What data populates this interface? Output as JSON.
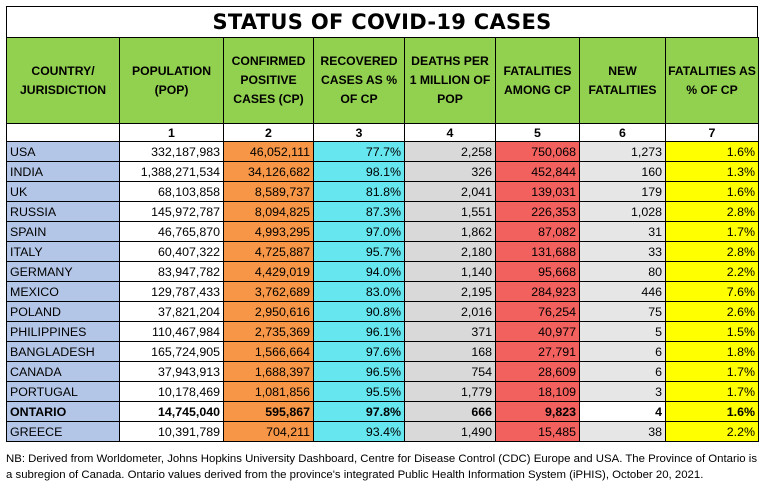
{
  "title": "STATUS OF COVID-19 CASES",
  "headers": [
    "COUNTRY/ JURISDICTION",
    "POPULATION (POP)",
    "CONFIRMED POSITIVE CASES (CP)",
    "RECOVERED CASES AS % OF CP",
    "DEATHS PER 1 MILLION OF POP",
    "FATALITIES AMONG CP",
    "NEW FATALITIES",
    "FATALITIES AS % OF CP"
  ],
  "column_numbers": [
    "",
    "1",
    "2",
    "3",
    "4",
    "5",
    "6",
    "7"
  ],
  "rows": [
    {
      "country": "USA",
      "pop": "332,187,983",
      "cp": "46,052,111",
      "rec": "77.7%",
      "dpm": "2,258",
      "fat": "750,068",
      "newf": "1,273",
      "pct": "1.6%",
      "bold": false
    },
    {
      "country": "INDIA",
      "pop": "1,388,271,534",
      "cp": "34,126,682",
      "rec": "98.1%",
      "dpm": "326",
      "fat": "452,844",
      "newf": "160",
      "pct": "1.3%",
      "bold": false
    },
    {
      "country": "UK",
      "pop": "68,103,858",
      "cp": "8,589,737",
      "rec": "81.8%",
      "dpm": "2,041",
      "fat": "139,031",
      "newf": "179",
      "pct": "1.6%",
      "bold": false
    },
    {
      "country": "RUSSIA",
      "pop": "145,972,787",
      "cp": "8,094,825",
      "rec": "87.3%",
      "dpm": "1,551",
      "fat": "226,353",
      "newf": "1,028",
      "pct": "2.8%",
      "bold": false
    },
    {
      "country": "SPAIN",
      "pop": "46,765,870",
      "cp": "4,993,295",
      "rec": "97.0%",
      "dpm": "1,862",
      "fat": "87,082",
      "newf": "31",
      "pct": "1.7%",
      "bold": false
    },
    {
      "country": "ITALY",
      "pop": "60,407,322",
      "cp": "4,725,887",
      "rec": "95.7%",
      "dpm": "2,180",
      "fat": "131,688",
      "newf": "33",
      "pct": "2.8%",
      "bold": false
    },
    {
      "country": "GERMANY",
      "pop": "83,947,782",
      "cp": "4,429,019",
      "rec": "94.0%",
      "dpm": "1,140",
      "fat": "95,668",
      "newf": "80",
      "pct": "2.2%",
      "bold": false
    },
    {
      "country": "MEXICO",
      "pop": "129,787,433",
      "cp": "3,762,689",
      "rec": "83.0%",
      "dpm": "2,195",
      "fat": "284,923",
      "newf": "446",
      "pct": "7.6%",
      "bold": false
    },
    {
      "country": "POLAND",
      "pop": "37,821,204",
      "cp": "2,950,616",
      "rec": "90.8%",
      "dpm": "2,016",
      "fat": "76,254",
      "newf": "75",
      "pct": "2.6%",
      "bold": false
    },
    {
      "country": "PHILIPPINES",
      "pop": "110,467,984",
      "cp": "2,735,369",
      "rec": "96.1%",
      "dpm": "371",
      "fat": "40,977",
      "newf": "5",
      "pct": "1.5%",
      "bold": false
    },
    {
      "country": "BANGLADESH",
      "pop": "165,724,905",
      "cp": "1,566,664",
      "rec": "97.6%",
      "dpm": "168",
      "fat": "27,791",
      "newf": "6",
      "pct": "1.8%",
      "bold": false
    },
    {
      "country": "CANADA",
      "pop": "37,943,913",
      "cp": "1,688,397",
      "rec": "96.5%",
      "dpm": "754",
      "fat": "28,609",
      "newf": "6",
      "pct": "1.7%",
      "bold": false
    },
    {
      "country": "PORTUGAL",
      "pop": "10,178,469",
      "cp": "1,081,856",
      "rec": "95.5%",
      "dpm": "1,779",
      "fat": "18,109",
      "newf": "3",
      "pct": "1.7%",
      "bold": false
    },
    {
      "country": "ONTARIO",
      "pop": "14,745,040",
      "cp": "595,867",
      "rec": "97.8%",
      "dpm": "666",
      "fat": "9,823",
      "newf": "4",
      "pct": "1.6%",
      "bold": true
    },
    {
      "country": "GREECE",
      "pop": "10,391,789",
      "cp": "704,211",
      "rec": "93.4%",
      "dpm": "1,490",
      "fat": "15,485",
      "newf": "38",
      "pct": "2.2%",
      "bold": false
    }
  ],
  "footnote": "NB: Derived from Worldometer, Johns Hopkins University Dashboard, Centre for Disease Control (CDC) Europe and USA. The Province of Ontario is a subregion of Canada. Ontario values derived from the province's integrated Public Health Information System (iPHIS), October 20, 2021.",
  "colors": {
    "header_green": "#92d050",
    "country_blue": "#b4c6e7",
    "cases_orange": "#f79646",
    "recovered_cyan": "#66e6ee",
    "deaths_grey": "#d9d9d9",
    "fatalities_red": "#f2615e",
    "new_fatalities_grey": "#e7e6e6",
    "percent_yellow": "#ffff00"
  }
}
